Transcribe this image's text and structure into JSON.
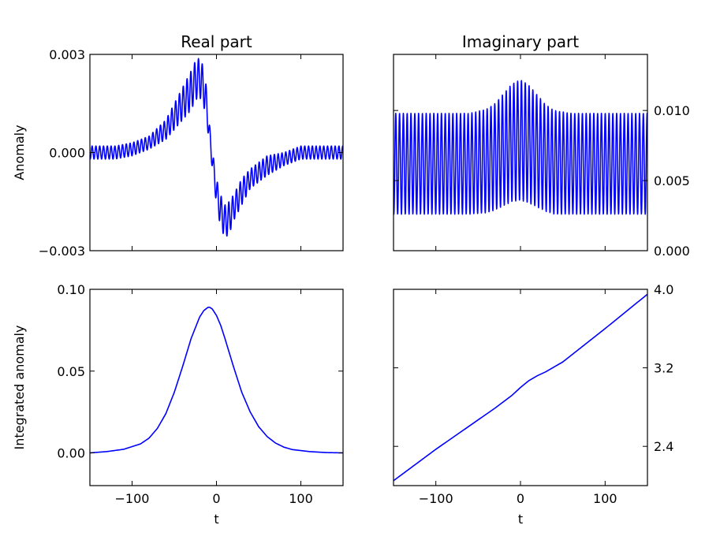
{
  "chart_data": [
    {
      "id": "real-anomaly",
      "type": "line",
      "title": "Real part",
      "xlabel": "",
      "ylabel": "Anomaly",
      "xlim": [
        -150,
        150
      ],
      "ylim": [
        -0.003,
        0.003
      ],
      "xticks": [
        -100,
        0,
        100
      ],
      "xtick_labels": [
        "",
        "",
        ""
      ],
      "yticks": [
        -0.003,
        0.0,
        0.003
      ],
      "ytick_labels": [
        "−0.003",
        "0.000",
        "0.003"
      ],
      "y_axis_side": "left",
      "series": [
        {
          "color": "#0000ff",
          "x": [
            -150,
            -120,
            -100,
            -80,
            -60,
            -50,
            -40,
            -30,
            -25,
            -20,
            -15,
            -12,
            -10,
            -8,
            -5,
            0,
            5,
            10,
            15,
            20,
            30,
            40,
            60,
            80,
            100,
            120,
            150
          ],
          "y": [
            0.0,
            0.0,
            0.0001,
            0.0003,
            0.0007,
            0.0011,
            0.0015,
            0.0019,
            0.0022,
            0.0023,
            0.002,
            0.0015,
            0.001,
            0.0005,
            -0.0002,
            -0.0012,
            -0.0018,
            -0.0021,
            -0.002,
            -0.0017,
            -0.0012,
            -0.0008,
            -0.0004,
            -0.0002,
            0.0,
            0.0,
            0.0
          ],
          "oscillation_amplitude": [
            0.0002,
            0.0002,
            0.0002,
            0.0002,
            0.0003,
            0.0004,
            0.0005,
            0.0006,
            0.0006,
            0.0006,
            0.0006,
            0.0005,
            0.0004,
            0.0003,
            0.0003,
            0.0004,
            0.0005,
            0.0005,
            0.0005,
            0.0004,
            0.0004,
            0.0003,
            0.0003,
            0.0002,
            0.0002,
            0.0002,
            0.0002
          ],
          "oscillation_period": 4.5
        }
      ]
    },
    {
      "id": "imag-anomaly",
      "type": "line",
      "title": "Imaginary part",
      "xlabel": "",
      "ylabel": "",
      "xlim": [
        -150,
        150
      ],
      "ylim": [
        0.0,
        0.014
      ],
      "xticks": [
        -100,
        0,
        100
      ],
      "xtick_labels": [
        "",
        "",
        ""
      ],
      "yticks": [
        0.0,
        0.005,
        0.01
      ],
      "ytick_labels": [
        "0.000",
        "0.005",
        "0.010"
      ],
      "y_axis_side": "right",
      "series": [
        {
          "color": "#0000ff",
          "x": [
            -150,
            -60,
            -40,
            -30,
            -20,
            -10,
            0,
            10,
            20,
            30,
            40,
            60,
            150
          ],
          "y": [
            0.0062,
            0.0062,
            0.0064,
            0.0067,
            0.0072,
            0.0077,
            0.0079,
            0.0076,
            0.0071,
            0.0066,
            0.0063,
            0.0062,
            0.0062
          ],
          "oscillation_amplitude": [
            0.0036,
            0.0036,
            0.0037,
            0.0038,
            0.004,
            0.0042,
            0.0043,
            0.0042,
            0.004,
            0.0038,
            0.0037,
            0.0036,
            0.0036
          ],
          "oscillation_period": 4.5
        }
      ]
    },
    {
      "id": "real-integrated",
      "type": "line",
      "title": "",
      "xlabel": "t",
      "ylabel": "Integrated anomaly",
      "xlim": [
        -150,
        150
      ],
      "ylim": [
        -0.02,
        0.1
      ],
      "xticks": [
        -100,
        0,
        100
      ],
      "xtick_labels": [
        "−100",
        "0",
        "100"
      ],
      "yticks": [
        0.0,
        0.05,
        0.1
      ],
      "ytick_labels": [
        "0.00",
        "0.05",
        "0.10"
      ],
      "y_axis_side": "left",
      "series": [
        {
          "color": "#0000ff",
          "x": [
            -150,
            -130,
            -110,
            -90,
            -80,
            -70,
            -60,
            -50,
            -40,
            -30,
            -20,
            -15,
            -10,
            -8,
            -5,
            0,
            5,
            10,
            20,
            30,
            40,
            50,
            60,
            70,
            80,
            90,
            110,
            130,
            150
          ],
          "y": [
            0.0,
            0.0008,
            0.0022,
            0.0055,
            0.009,
            0.015,
            0.024,
            0.037,
            0.053,
            0.07,
            0.083,
            0.087,
            0.089,
            0.089,
            0.088,
            0.084,
            0.078,
            0.07,
            0.053,
            0.037,
            0.025,
            0.016,
            0.01,
            0.006,
            0.0035,
            0.002,
            0.0008,
            0.0002,
            0.0
          ]
        }
      ]
    },
    {
      "id": "imag-integrated",
      "type": "line",
      "title": "",
      "xlabel": "t",
      "ylabel": "",
      "xlim": [
        -150,
        150
      ],
      "ylim": [
        2.0,
        4.0
      ],
      "xticks": [
        -100,
        0,
        100
      ],
      "xtick_labels": [
        "−100",
        "0",
        "100"
      ],
      "yticks": [
        2.4,
        3.2,
        4.0
      ],
      "ytick_labels": [
        "2.4",
        "3.2",
        "4.0"
      ],
      "y_axis_side": "right",
      "series": [
        {
          "color": "#0000ff",
          "x": [
            -150,
            -100,
            -50,
            -30,
            -10,
            0,
            10,
            20,
            30,
            50,
            100,
            150
          ],
          "y": [
            2.05,
            2.37,
            2.67,
            2.79,
            2.92,
            3.0,
            3.07,
            3.12,
            3.16,
            3.26,
            3.6,
            3.95
          ]
        }
      ]
    }
  ]
}
